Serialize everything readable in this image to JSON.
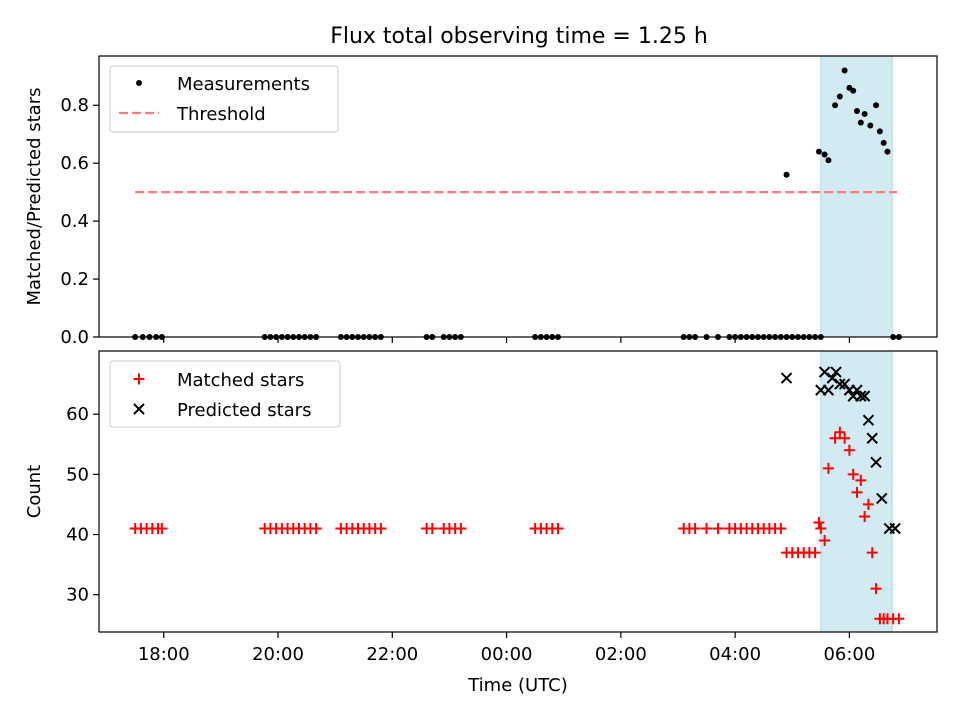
{
  "figure_title": "Flux total observing time = 1.25 h",
  "colors": {
    "measurement": "#000000",
    "threshold": "#ff7b7b",
    "matched": "#ff0000",
    "predicted": "#000000",
    "highlight": "#add8e6"
  },
  "chart_data": [
    {
      "type": "scatter",
      "ylabel": "Matched/Predicted stars",
      "ylim": [
        0,
        0.97
      ],
      "y_ticks": [
        0.0,
        0.2,
        0.4,
        0.6,
        0.8
      ],
      "y_tick_labels": [
        "0.0",
        "0.2",
        "0.4",
        "0.6",
        "0.8"
      ],
      "legend_position": "top-left",
      "legend": [
        {
          "label": "Measurements",
          "marker": "dot"
        },
        {
          "label": "Threshold",
          "marker": "dashed-line"
        }
      ],
      "threshold": {
        "value": 0.5,
        "x_start": "17:30",
        "x_end": "06:50"
      },
      "highlight_span": {
        "start": "05:30",
        "end": "06:45"
      },
      "series": [
        {
          "name": "Measurements",
          "x": [
            "17:30",
            "17:38",
            "17:45",
            "17:52",
            "17:58",
            "19:46",
            "19:52",
            "19:58",
            "20:04",
            "20:10",
            "20:16",
            "20:22",
            "20:28",
            "20:34",
            "20:40",
            "21:06",
            "21:12",
            "21:18",
            "21:24",
            "21:30",
            "21:36",
            "21:42",
            "21:48",
            "22:36",
            "22:42",
            "22:54",
            "23:00",
            "23:06",
            "23:12",
            "00:30",
            "00:36",
            "00:42",
            "00:48",
            "00:54",
            "03:06",
            "03:12",
            "03:18",
            "03:30",
            "03:42",
            "03:54",
            "04:00",
            "04:06",
            "04:12",
            "04:18",
            "04:24",
            "04:30",
            "04:36",
            "04:42",
            "04:48",
            "04:54",
            "05:00",
            "05:06",
            "05:12",
            "05:18",
            "05:24",
            "05:30",
            "05:28",
            "05:34",
            "05:38",
            "05:45",
            "05:50",
            "05:55",
            "06:00",
            "06:04",
            "06:08",
            "06:12",
            "06:16",
            "06:22",
            "06:28",
            "06:32",
            "06:36",
            "06:40",
            "06:46",
            "06:52"
          ],
          "y": [
            0,
            0,
            0,
            0,
            0,
            0,
            0,
            0,
            0,
            0,
            0,
            0,
            0,
            0,
            0,
            0,
            0,
            0,
            0,
            0,
            0,
            0,
            0,
            0,
            0,
            0,
            0,
            0,
            0,
            0,
            0,
            0,
            0,
            0,
            0,
            0,
            0,
            0,
            0,
            0,
            0,
            0,
            0,
            0,
            0,
            0,
            0,
            0,
            0,
            0,
            0,
            0,
            0,
            0,
            0,
            0,
            0.64,
            0.63,
            0.61,
            0.8,
            0.83,
            0.92,
            0.86,
            0.85,
            0.78,
            0.74,
            0.77,
            0.73,
            0.8,
            0.71,
            0.67,
            0.64,
            0,
            0
          ]
        },
        {
          "name": "",
          "x": [
            "04:54"
          ],
          "y": [
            0.56
          ]
        }
      ]
    },
    {
      "type": "scatter",
      "xlabel": "Time (UTC)",
      "ylabel": "Count",
      "ylim": [
        23.8,
        70.5
      ],
      "y_ticks": [
        30,
        40,
        50,
        60
      ],
      "y_tick_labels": [
        "30",
        "40",
        "50",
        "60"
      ],
      "x_ticks": [
        "18:00",
        "20:00",
        "22:00",
        "00:00",
        "02:00",
        "04:00",
        "06:00"
      ],
      "x_tick_labels": [
        "18:00",
        "20:00",
        "22:00",
        "00:00",
        "02:00",
        "04:00",
        "06:00"
      ],
      "x_range": [
        "16:52",
        "07:32"
      ],
      "legend_position": "top-left",
      "legend": [
        {
          "label": "Matched stars",
          "marker": "plus"
        },
        {
          "label": "Predicted stars",
          "marker": "x"
        }
      ],
      "highlight_span": {
        "start": "05:30",
        "end": "06:45"
      },
      "series": [
        {
          "name": "Matched stars",
          "x": [
            "17:30",
            "17:36",
            "17:42",
            "17:48",
            "17:54",
            "17:58",
            "19:46",
            "19:52",
            "19:58",
            "20:04",
            "20:10",
            "20:16",
            "20:22",
            "20:28",
            "20:34",
            "20:40",
            "21:06",
            "21:12",
            "21:18",
            "21:24",
            "21:30",
            "21:36",
            "21:42",
            "21:48",
            "22:36",
            "22:42",
            "22:54",
            "23:00",
            "23:06",
            "23:12",
            "00:30",
            "00:36",
            "00:42",
            "00:48",
            "00:54",
            "03:06",
            "03:12",
            "03:18",
            "03:30",
            "03:42",
            "03:54",
            "04:00",
            "04:06",
            "04:12",
            "04:18",
            "04:24",
            "04:30",
            "04:36",
            "04:42",
            "04:48",
            "04:54",
            "05:00",
            "05:06",
            "05:12",
            "05:18",
            "05:24",
            "05:30",
            "05:28",
            "05:34",
            "05:38",
            "05:45",
            "05:50",
            "05:55",
            "06:00",
            "06:04",
            "06:08",
            "06:12",
            "06:16",
            "06:20",
            "06:24",
            "06:28",
            "06:32",
            "06:36",
            "06:40",
            "06:46",
            "06:52"
          ],
          "y": [
            41,
            41,
            41,
            41,
            41,
            41,
            41,
            41,
            41,
            41,
            41,
            41,
            41,
            41,
            41,
            41,
            41,
            41,
            41,
            41,
            41,
            41,
            41,
            41,
            41,
            41,
            41,
            41,
            41,
            41,
            41,
            41,
            41,
            41,
            41,
            41,
            41,
            41,
            41,
            41,
            41,
            41,
            41,
            41,
            41,
            41,
            41,
            41,
            41,
            41,
            37,
            37,
            37,
            37,
            37,
            37,
            41,
            42,
            39,
            51,
            56,
            57,
            56,
            54,
            50,
            47,
            49,
            43,
            45,
            37,
            31,
            26,
            26,
            26,
            26,
            26
          ]
        },
        {
          "name": "Predicted stars",
          "x": [
            "04:54",
            "05:30",
            "05:34",
            "05:38",
            "05:42",
            "05:46",
            "05:50",
            "05:55",
            "06:00",
            "06:04",
            "06:08",
            "06:12",
            "06:16",
            "06:20",
            "06:24",
            "06:28",
            "06:34",
            "06:42",
            "06:48"
          ],
          "y": [
            66,
            64,
            67,
            64,
            66,
            67,
            65,
            65,
            64,
            63,
            64,
            63,
            63,
            59,
            56,
            52,
            46,
            41,
            41
          ]
        }
      ]
    }
  ]
}
